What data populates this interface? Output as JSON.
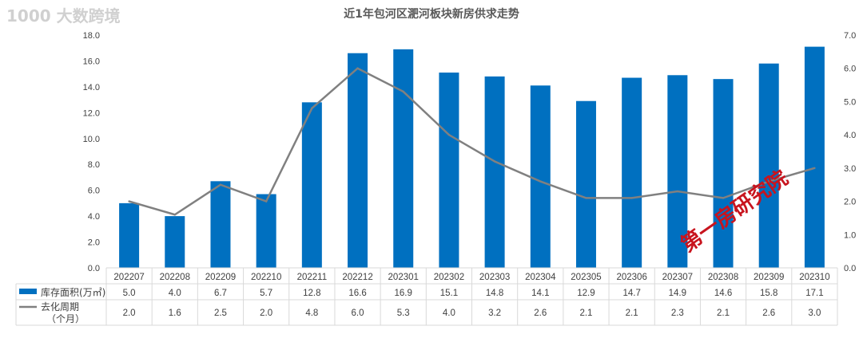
{
  "chart_data": {
    "type": "bar+line",
    "title": "近1年包河区淝河板块新房供求走势",
    "categories": [
      "202207",
      "202208",
      "202209",
      "202210",
      "202211",
      "202212",
      "202301",
      "202302",
      "202303",
      "202304",
      "202305",
      "202306",
      "202307",
      "202308",
      "202309",
      "202310"
    ],
    "series": [
      {
        "name": "库存面积(万㎡)",
        "type": "bar",
        "axis": "left",
        "color": "#0070C0",
        "values": [
          5.0,
          4.0,
          6.7,
          5.7,
          12.8,
          16.6,
          16.9,
          15.1,
          14.8,
          14.1,
          12.9,
          14.7,
          14.9,
          14.6,
          15.8,
          17.1
        ]
      },
      {
        "name": "去化周期（个月）",
        "type": "line",
        "axis": "right",
        "color": "#808080",
        "values": [
          2.0,
          1.6,
          2.5,
          2.0,
          4.8,
          6.0,
          5.3,
          4.0,
          3.2,
          2.6,
          2.1,
          2.1,
          2.3,
          2.1,
          2.6,
          3.0
        ]
      }
    ],
    "left_axis": {
      "min": 0,
      "max": 18,
      "step": 2,
      "ticks": [
        "0.0",
        "2.0",
        "4.0",
        "6.0",
        "8.0",
        "10.0",
        "12.0",
        "14.0",
        "16.0",
        "18.0"
      ]
    },
    "right_axis": {
      "min": 0,
      "max": 7,
      "step": 1,
      "ticks": [
        "0.0",
        "1.0",
        "2.0",
        "3.0",
        "4.0",
        "5.0",
        "6.0",
        "7.0"
      ]
    },
    "data_table": true,
    "grid": false,
    "legend": "data-table"
  },
  "watermarks": [
    "第一房研究院",
    "1000 大数跨境"
  ]
}
